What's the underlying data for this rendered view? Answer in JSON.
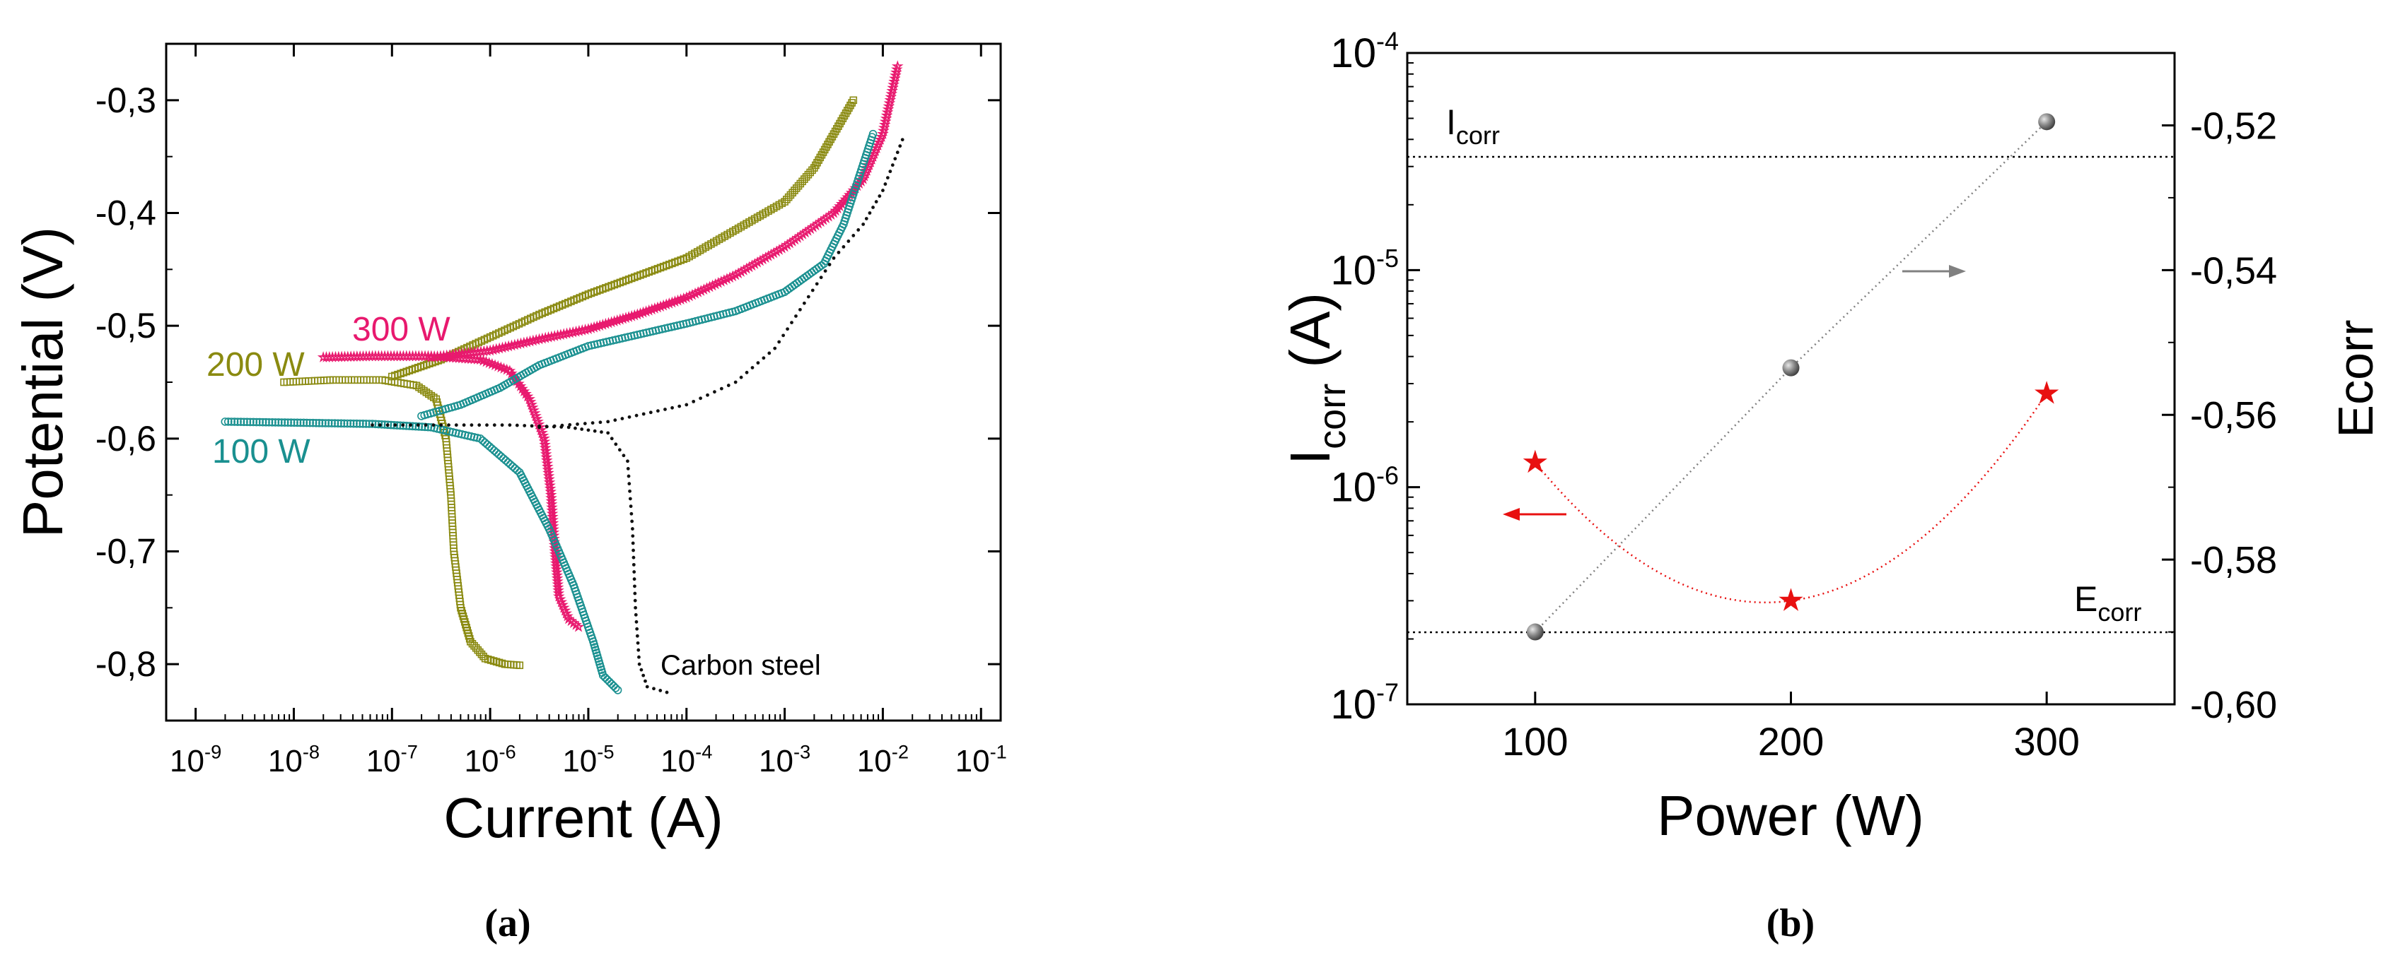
{
  "chart_data": [
    {
      "panel": "(a)",
      "type": "scatter",
      "xlabel": "Current (A)",
      "ylabel": "Potential (V)",
      "xscale": "log",
      "xlim_exp": [
        -9.3,
        -0.8
      ],
      "ylim": [
        -0.85,
        -0.25
      ],
      "x_ticks": [
        {
          "exp": -9,
          "base": "10",
          "sup": "-9"
        },
        {
          "exp": -8,
          "base": "10",
          "sup": "-8"
        },
        {
          "exp": -7,
          "base": "10",
          "sup": "-7"
        },
        {
          "exp": -6,
          "base": "10",
          "sup": "-6"
        },
        {
          "exp": -5,
          "base": "10",
          "sup": "-5"
        },
        {
          "exp": -4,
          "base": "10",
          "sup": "-4"
        },
        {
          "exp": -3,
          "base": "10",
          "sup": "-3"
        },
        {
          "exp": -2,
          "base": "10",
          "sup": "-2"
        },
        {
          "exp": -1,
          "base": "10",
          "sup": "-1"
        }
      ],
      "y_ticks": [
        {
          "v": -0.3,
          "label": "-0,3"
        },
        {
          "v": -0.4,
          "label": "-0,4"
        },
        {
          "v": -0.5,
          "label": "-0,5"
        },
        {
          "v": -0.6,
          "label": "-0,6"
        },
        {
          "v": -0.7,
          "label": "-0,7"
        },
        {
          "v": -0.8,
          "label": "-0,8"
        }
      ],
      "series": [
        {
          "name": "200 W",
          "color": "#8a8a10",
          "marker": "square",
          "cathodic": [
            [
              -8.1,
              -0.55
            ],
            [
              -7.6,
              -0.548
            ],
            [
              -7.1,
              -0.548
            ],
            [
              -6.75,
              -0.553
            ],
            [
              -6.55,
              -0.565
            ],
            [
              -6.45,
              -0.6
            ],
            [
              -6.4,
              -0.65
            ],
            [
              -6.37,
              -0.7
            ],
            [
              -6.3,
              -0.75
            ],
            [
              -6.2,
              -0.78
            ],
            [
              -6.05,
              -0.795
            ],
            [
              -5.85,
              -0.8
            ],
            [
              -5.7,
              -0.801
            ]
          ],
          "anodic": [
            [
              -7.0,
              -0.545
            ],
            [
              -6.5,
              -0.53
            ],
            [
              -6.0,
              -0.51
            ],
            [
              -5.5,
              -0.49
            ],
            [
              -5.0,
              -0.472
            ],
            [
              -4.5,
              -0.456
            ],
            [
              -4.0,
              -0.44
            ],
            [
              -3.5,
              -0.415
            ],
            [
              -3.0,
              -0.39
            ],
            [
              -2.7,
              -0.36
            ],
            [
              -2.5,
              -0.33
            ],
            [
              -2.3,
              -0.3
            ]
          ]
        },
        {
          "name": "300 W",
          "color": "#e8196e",
          "marker": "star",
          "cathodic": [
            [
              -7.7,
              -0.528
            ],
            [
              -7.2,
              -0.527
            ],
            [
              -6.6,
              -0.527
            ],
            [
              -6.1,
              -0.53
            ],
            [
              -5.8,
              -0.54
            ],
            [
              -5.6,
              -0.565
            ],
            [
              -5.45,
              -0.6
            ],
            [
              -5.38,
              -0.65
            ],
            [
              -5.34,
              -0.7
            ],
            [
              -5.3,
              -0.74
            ],
            [
              -5.2,
              -0.76
            ],
            [
              -5.1,
              -0.767
            ]
          ],
          "anodic": [
            [
              -6.6,
              -0.528
            ],
            [
              -6.0,
              -0.522
            ],
            [
              -5.5,
              -0.512
            ],
            [
              -5.0,
              -0.503
            ],
            [
              -4.5,
              -0.49
            ],
            [
              -4.0,
              -0.475
            ],
            [
              -3.5,
              -0.455
            ],
            [
              -3.0,
              -0.43
            ],
            [
              -2.5,
              -0.4
            ],
            [
              -2.2,
              -0.37
            ],
            [
              -2.0,
              -0.33
            ],
            [
              -1.85,
              -0.27
            ]
          ]
        },
        {
          "name": "100 W",
          "color": "#1a9090",
          "marker": "circle",
          "cathodic": [
            [
              -8.7,
              -0.585
            ],
            [
              -7.9,
              -0.586
            ],
            [
              -7.2,
              -0.587
            ],
            [
              -6.6,
              -0.59
            ],
            [
              -6.1,
              -0.6
            ],
            [
              -5.7,
              -0.63
            ],
            [
              -5.4,
              -0.68
            ],
            [
              -5.15,
              -0.73
            ],
            [
              -4.95,
              -0.78
            ],
            [
              -4.85,
              -0.81
            ],
            [
              -4.7,
              -0.823
            ]
          ],
          "anodic": [
            [
              -6.7,
              -0.58
            ],
            [
              -6.3,
              -0.57
            ],
            [
              -5.9,
              -0.555
            ],
            [
              -5.5,
              -0.535
            ],
            [
              -5.0,
              -0.518
            ],
            [
              -4.5,
              -0.508
            ],
            [
              -4.0,
              -0.498
            ],
            [
              -3.5,
              -0.487
            ],
            [
              -3.0,
              -0.47
            ],
            [
              -2.6,
              -0.445
            ],
            [
              -2.4,
              -0.41
            ],
            [
              -2.25,
              -0.37
            ],
            [
              -2.1,
              -0.33
            ]
          ]
        },
        {
          "name": "Carbon steel",
          "color": "#111111",
          "marker": "dot",
          "cathodic": [
            [
              -7.2,
              -0.588
            ],
            [
              -6.5,
              -0.588
            ],
            [
              -5.8,
              -0.588
            ],
            [
              -5.2,
              -0.59
            ],
            [
              -4.8,
              -0.595
            ],
            [
              -4.6,
              -0.62
            ],
            [
              -4.55,
              -0.68
            ],
            [
              -4.52,
              -0.75
            ],
            [
              -4.48,
              -0.8
            ],
            [
              -4.4,
              -0.82
            ],
            [
              -4.2,
              -0.825
            ]
          ],
          "anodic": [
            [
              -5.5,
              -0.59
            ],
            [
              -4.8,
              -0.585
            ],
            [
              -4.0,
              -0.57
            ],
            [
              -3.5,
              -0.55
            ],
            [
              -3.1,
              -0.52
            ],
            [
              -2.8,
              -0.48
            ],
            [
              -2.5,
              -0.44
            ],
            [
              -2.2,
              -0.41
            ],
            [
              -2.0,
              -0.38
            ],
            [
              -1.8,
              -0.335
            ]
          ]
        }
      ],
      "annotations": [
        {
          "text": "300 W",
          "color": "#e8196e"
        },
        {
          "text": "200 W",
          "color": "#8a8a10"
        },
        {
          "text": "100 W",
          "color": "#1a9090"
        },
        {
          "text": "Carbon steel",
          "color": "#000000"
        }
      ],
      "caption": "(a)"
    },
    {
      "panel": "(b)",
      "type": "scatter",
      "xlabel": "Power (W)",
      "ylabel_base": "I",
      "ylabel_sub": "corr",
      "ylabel_unit": " (A)",
      "y2label": "Ecorr",
      "xlim": [
        50,
        350
      ],
      "ylim_exp": [
        -7,
        -4
      ],
      "y2lim": [
        -0.6,
        -0.51
      ],
      "x_ticks": [
        100,
        200,
        300
      ],
      "y_ticks": [
        {
          "exp": -4,
          "base": "10",
          "sup": "-4"
        },
        {
          "exp": -5,
          "base": "10",
          "sup": "-5"
        },
        {
          "exp": -6,
          "base": "10",
          "sup": "-6"
        },
        {
          "exp": -7,
          "base": "10",
          "sup": "-7"
        }
      ],
      "y2_ticks": [
        {
          "v": -0.52,
          "label": "-0,52"
        },
        {
          "v": -0.54,
          "label": "-0,54"
        },
        {
          "v": -0.56,
          "label": "-0,56"
        },
        {
          "v": -0.58,
          "label": "-0,58"
        },
        {
          "v": -0.6,
          "label": "-0,60"
        }
      ],
      "series": [
        {
          "name": "Icorr",
          "color": "#e81010",
          "marker": "star",
          "axis": "left",
          "x": [
            100,
            200,
            300
          ],
          "values": [
            1.3e-06,
            3e-07,
            2.7e-06
          ]
        },
        {
          "name": "Ecorr",
          "color": "#808080",
          "marker": "sphere",
          "axis": "right",
          "x": [
            100,
            200,
            300
          ],
          "values": [
            -0.59,
            -0.5535,
            -0.5195
          ]
        }
      ],
      "reference_lines": [
        {
          "axis": "left",
          "value": 3.5e-05
        },
        {
          "axis": "left",
          "value": 2.2e-07
        }
      ],
      "annotations": [
        {
          "base": "I",
          "sub": "corr"
        },
        {
          "base": "E",
          "sub": "corr"
        }
      ],
      "caption": "(b)"
    }
  ]
}
